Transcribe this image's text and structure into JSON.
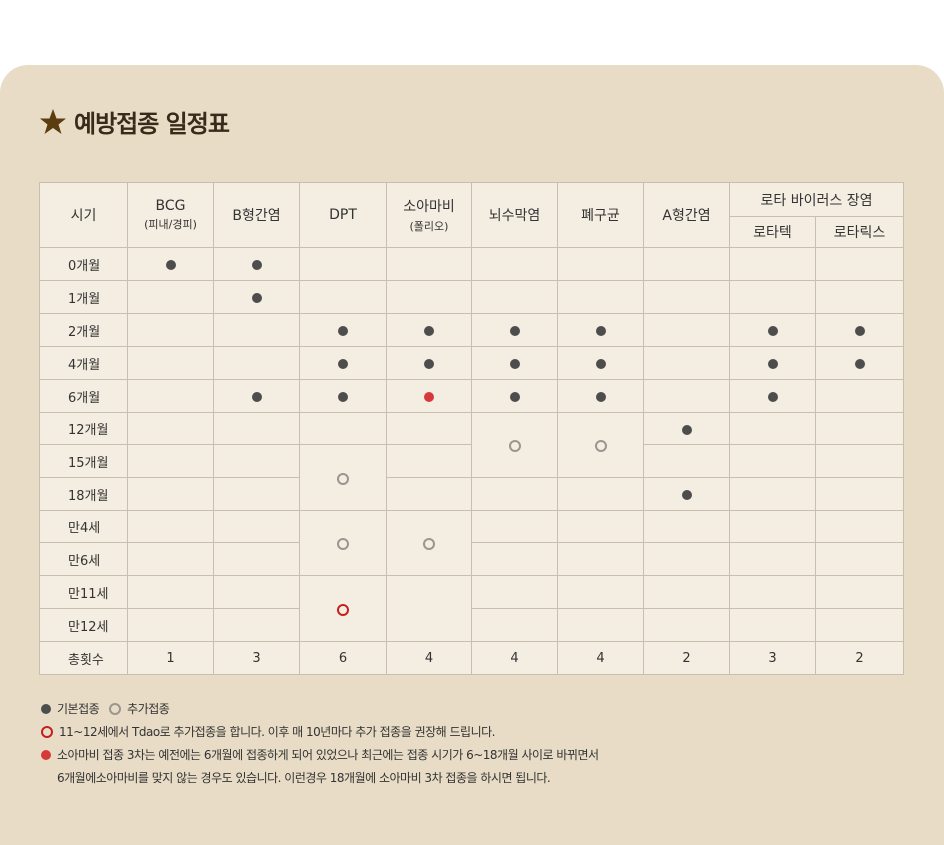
{
  "title": "예방접종 일정표",
  "colors": {
    "panel": "#e8dcc6",
    "table_bg": "#f4ede1",
    "dot": "#4d4d4d",
    "red": "#d53a3a",
    "ring": "#9a9590",
    "star": "#5c3d0f"
  },
  "headers": {
    "age": "시기",
    "bcg": "BCG",
    "bcg_sub": "(피내/경피)",
    "hepb": "B형간염",
    "dpt": "DPT",
    "polio": "소아마비",
    "polio_sub": "(폴리오)",
    "hib": "뇌수막염",
    "pneumo": "폐구균",
    "hepa": "A형간염",
    "rota": "로타 바이러스 장염",
    "rotateq": "로타텍",
    "rotarix": "로타릭스"
  },
  "ages": [
    "0개월",
    "1개월",
    "2개월",
    "4개월",
    "6개월",
    "12개월",
    "15개월",
    "18개월",
    "만4세",
    "만6세",
    "만11세",
    "만12세"
  ],
  "total_label": "총횟수",
  "totals": [
    "1",
    "3",
    "6",
    "4",
    "4",
    "4",
    "2",
    "3",
    "2"
  ],
  "legend": {
    "basic": "기본접종",
    "extra": "추가접종",
    "note1": "11~12세에서 Tdao로 추가접종을 합니다. 이후 매 10년마다 추가 접종을 권장해 드립니다.",
    "note2a": "소아마비 접종 3차는 예전에는 6개월에 접종하게 되어 있었으나 최근에는 접종 시기가 6~18개월 사이로 바뀌면서",
    "note2b": "6개월에소아마비를 맞지 않는 경우도 있습니다. 이런경우 18개월에 소아마비 3차 접종을 하시면 됩니다."
  }
}
